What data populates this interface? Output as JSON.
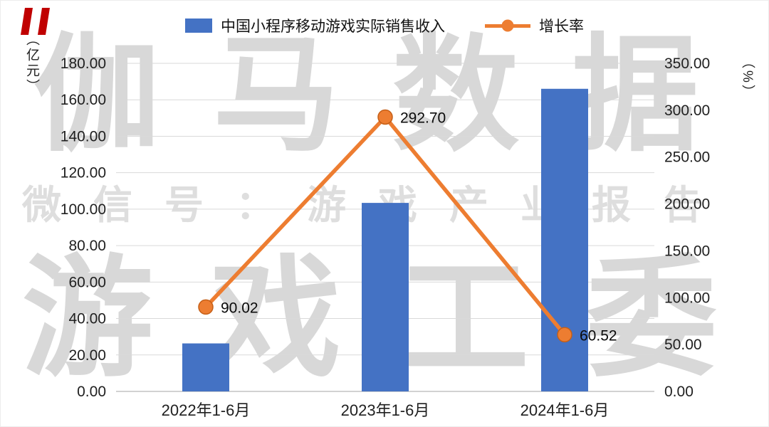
{
  "legend": {
    "bar_label": "中国小程序移动游戏实际销售收入",
    "line_label": "增长率"
  },
  "axes": {
    "left_unit": "（亿元）",
    "right_unit": "（%）"
  },
  "watermark": {
    "line1": "伽马数据",
    "line2": "微信号：游戏产业报告",
    "line3": "游戏工委"
  },
  "colors": {
    "bar": "#4472c4",
    "line": "#ed7d31",
    "line_marker_edge": "#c55f17",
    "grid": "#d9d9d9",
    "axis": "#a6a6a6",
    "text": "#1f1f1f",
    "watermark": "#d8d8d8",
    "accent_red": "#c00000"
  },
  "chart_data": {
    "type": "bar+line combo",
    "categories": [
      "2022年1-6月",
      "2023年1-6月",
      "2024年1-6月"
    ],
    "series": [
      {
        "name": "中国小程序移动游戏实际销售收入",
        "type": "bar",
        "axis": "left",
        "values": [
          26.34,
          103.43,
          166.03
        ],
        "color": "#4472c4"
      },
      {
        "name": "增长率",
        "type": "line",
        "axis": "right",
        "values": [
          90.02,
          292.7,
          60.52
        ],
        "labels": [
          "90.02",
          "292.70",
          "60.52"
        ],
        "color": "#ed7d31"
      }
    ],
    "left_axis": {
      "unit": "（亿元）",
      "min": 0,
      "max": 180,
      "step": 20,
      "tick_format": "0.00"
    },
    "right_axis": {
      "unit": "（%）",
      "min": 0,
      "max": 350,
      "step": 50,
      "tick_format": "0.00"
    },
    "grid": true,
    "legend_position": "top"
  }
}
